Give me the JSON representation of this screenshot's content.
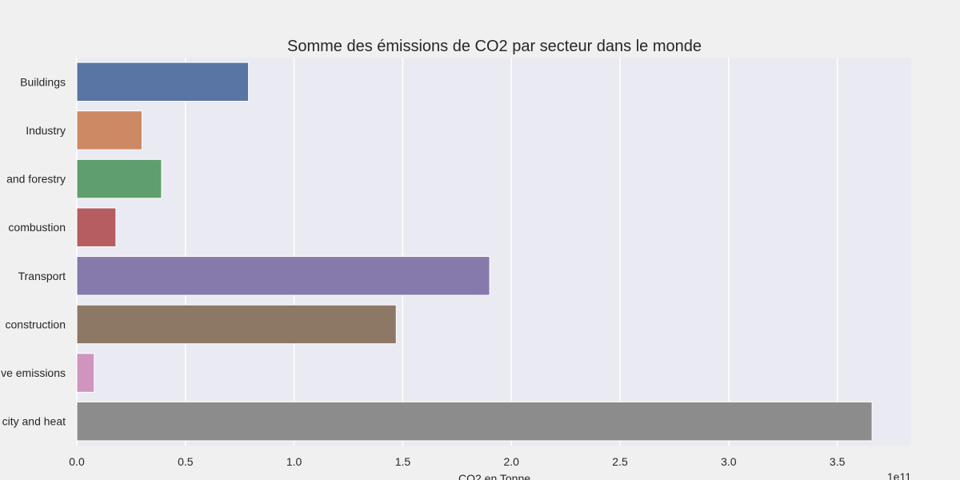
{
  "chart_data": {
    "type": "bar",
    "orientation": "horizontal",
    "title": "Somme des émissions de CO2 par secteur dans le monde",
    "xlabel": "CO2 en Tonne",
    "ylabel": "",
    "x_offset_text": "1e11",
    "xlim": [
      0,
      3.84
    ],
    "x_ticks": [
      0.0,
      0.5,
      1.0,
      1.5,
      2.0,
      2.5,
      3.0,
      3.5
    ],
    "x_tick_labels": [
      "0.0",
      "0.5",
      "1.0",
      "1.5",
      "2.0",
      "2.5",
      "3.0",
      "3.5"
    ],
    "grid": true,
    "legend": "none",
    "categories": [
      "Buildings",
      "Industry",
      "and forestry",
      "combustion",
      "Transport",
      "construction",
      "ve emissions",
      "city and heat"
    ],
    "values": [
      0.79,
      0.3,
      0.39,
      0.18,
      1.9,
      1.47,
      0.08,
      3.66
    ],
    "colors": [
      "#5875a4",
      "#cc8963",
      "#5f9e6e",
      "#b55d60",
      "#857aab",
      "#8d7866",
      "#d095bf",
      "#8c8c8c"
    ]
  },
  "style": {
    "plot_background": "#eaeaf2",
    "figure_background": "#f0f0f0",
    "grid_color": "#ffffff",
    "text_color": "#262626"
  }
}
